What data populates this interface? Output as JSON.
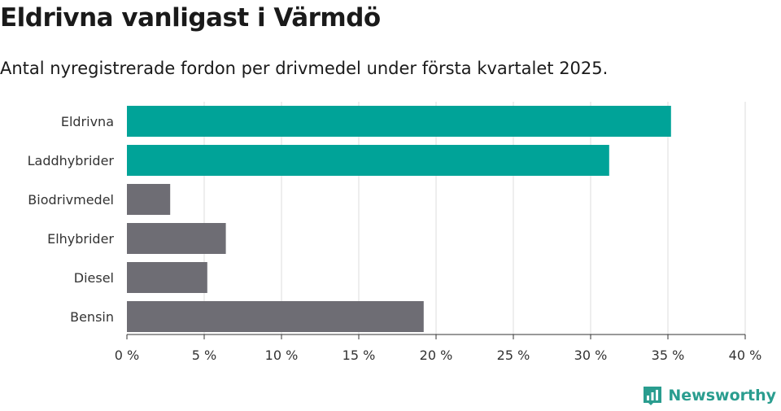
{
  "title": "Eldrivna vanligast i Värmdö",
  "subtitle": "Antal nyregistrerade fordon per drivmedel under första kvartalet 2025.",
  "brand": {
    "name": "Newsworthy",
    "color": "#2a9d8f",
    "icon": "bar-chart-logo-icon"
  },
  "colors": {
    "highlight": "#00a398",
    "default": "#6e6d74",
    "grid": "#dddddd",
    "axis": "#333333"
  },
  "chart_data": {
    "type": "bar",
    "orientation": "horizontal",
    "categories": [
      "Eldrivna",
      "Laddhybrider",
      "Biodrivmedel",
      "Elhybrider",
      "Diesel",
      "Bensin"
    ],
    "values": [
      35.2,
      31.2,
      2.8,
      6.4,
      5.2,
      19.2
    ],
    "highlighted": [
      true,
      true,
      false,
      false,
      false,
      false
    ],
    "xlim": [
      0,
      40
    ],
    "xticks": [
      0,
      5,
      10,
      15,
      20,
      25,
      30,
      35,
      40
    ],
    "xtick_labels": [
      "0 %",
      "5 %",
      "10 %",
      "15 %",
      "20 %",
      "25 %",
      "30 %",
      "35 %",
      "40 %"
    ],
    "grid": true
  }
}
